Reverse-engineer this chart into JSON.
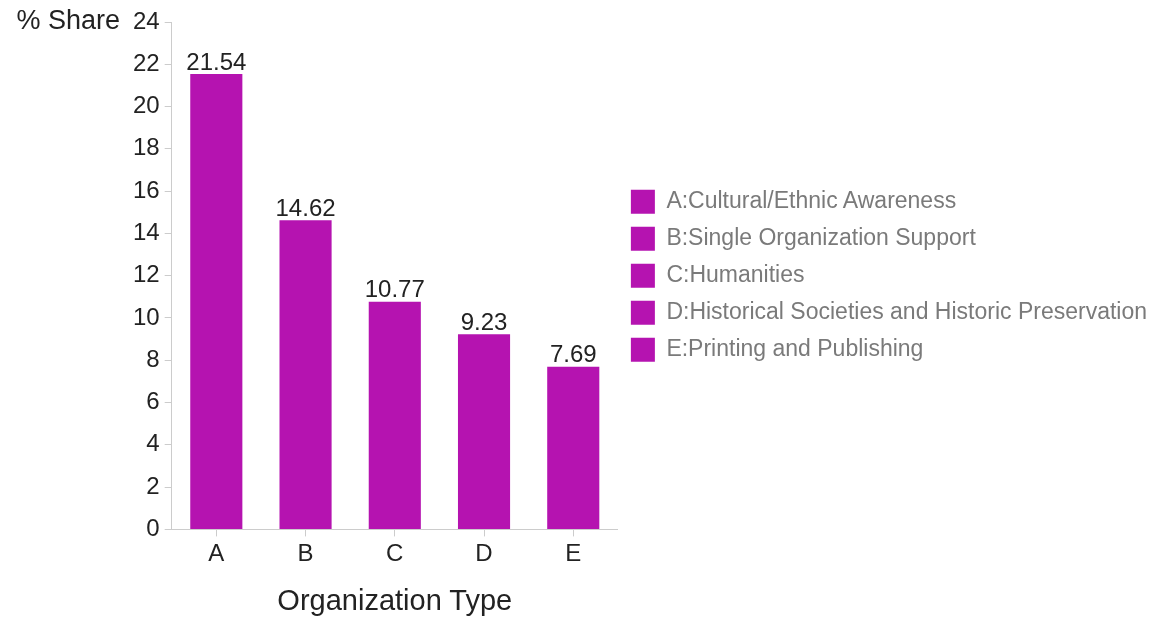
{
  "chart_data": {
    "type": "bar",
    "xlabel": "Organization Type",
    "ylabel": "% Share",
    "categories": [
      "A",
      "B",
      "C",
      "D",
      "E"
    ],
    "series": [
      {
        "name": "A:Cultural/Ethnic Awareness",
        "color": "#b513b0",
        "values": [
          21.54,
          null,
          null,
          null,
          null
        ]
      },
      {
        "name": "B:Single Organization Support",
        "color": "#b513b0",
        "values": [
          null,
          14.62,
          null,
          null,
          null
        ]
      },
      {
        "name": "C:Humanities",
        "color": "#b513b0",
        "values": [
          null,
          null,
          10.77,
          null,
          null
        ]
      },
      {
        "name": "D:Historical Societies and Historic Preservation",
        "color": "#b513b0",
        "values": [
          null,
          null,
          null,
          9.23,
          null
        ]
      },
      {
        "name": "E:Printing and Publishing",
        "color": "#b513b0",
        "values": [
          null,
          null,
          null,
          null,
          7.69
        ]
      }
    ],
    "ylim": [
      0,
      24
    ],
    "yticks": [
      0,
      2,
      4,
      6,
      8,
      10,
      12,
      14,
      16,
      18,
      20,
      22,
      24
    ],
    "grid": false,
    "legend": "right",
    "data_labels": true
  }
}
